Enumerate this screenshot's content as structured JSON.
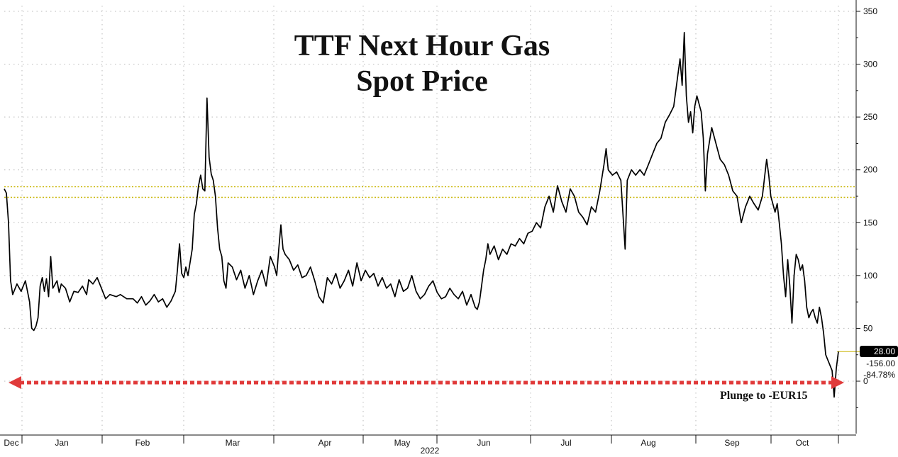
{
  "chart_data": {
    "type": "line",
    "title_lines": [
      "TTF Next Hour Gas",
      "Spot Price"
    ],
    "subtitle": "",
    "xlabel": "2022",
    "ylabel": "",
    "x_tick_labels": [
      "Dec",
      "Jan",
      "Feb",
      "Mar",
      "Apr",
      "May",
      "Jun",
      "Jul",
      "Aug",
      "Sep",
      "Oct"
    ],
    "y_ticks": [
      0,
      50,
      100,
      150,
      200,
      250,
      300,
      350
    ],
    "ylim": [
      -50,
      355
    ],
    "grid": true,
    "series": [
      {
        "points": [
          [
            0,
            182
          ],
          [
            1,
            178
          ],
          [
            2,
            150
          ],
          [
            3,
            95
          ],
          [
            4,
            82
          ],
          [
            6,
            92
          ],
          [
            8,
            85
          ],
          [
            10,
            95
          ],
          [
            12,
            75
          ],
          [
            13,
            50
          ],
          [
            14,
            48
          ],
          [
            15,
            52
          ],
          [
            16,
            60
          ],
          [
            17,
            90
          ],
          [
            18,
            98
          ],
          [
            19,
            85
          ],
          [
            20,
            97
          ],
          [
            21,
            80
          ],
          [
            22,
            118
          ],
          [
            23,
            88
          ],
          [
            25,
            95
          ],
          [
            26,
            84
          ],
          [
            27,
            92
          ],
          [
            29,
            88
          ],
          [
            31,
            75
          ],
          [
            33,
            85
          ],
          [
            35,
            84
          ],
          [
            37,
            90
          ],
          [
            39,
            82
          ],
          [
            40,
            96
          ],
          [
            42,
            92
          ],
          [
            44,
            98
          ],
          [
            46,
            88
          ],
          [
            48,
            78
          ],
          [
            50,
            82
          ],
          [
            53,
            80
          ],
          [
            55,
            82
          ],
          [
            58,
            78
          ],
          [
            61,
            78
          ],
          [
            63,
            74
          ],
          [
            65,
            80
          ],
          [
            67,
            72
          ],
          [
            69,
            76
          ],
          [
            71,
            82
          ],
          [
            73,
            75
          ],
          [
            75,
            78
          ],
          [
            77,
            70
          ],
          [
            79,
            76
          ],
          [
            81,
            85
          ],
          [
            82,
            105
          ],
          [
            83,
            130
          ],
          [
            84,
            102
          ],
          [
            85,
            98
          ],
          [
            86,
            108
          ],
          [
            87,
            100
          ],
          [
            89,
            125
          ],
          [
            90,
            158
          ],
          [
            91,
            168
          ],
          [
            92,
            185
          ],
          [
            93,
            195
          ],
          [
            94,
            182
          ],
          [
            95,
            180
          ],
          [
            96,
            268
          ],
          [
            97,
            212
          ],
          [
            98,
            196
          ],
          [
            99,
            190
          ],
          [
            100,
            175
          ],
          [
            101,
            145
          ],
          [
            102,
            125
          ],
          [
            103,
            118
          ],
          [
            104,
            95
          ],
          [
            105,
            88
          ],
          [
            106,
            112
          ],
          [
            108,
            108
          ],
          [
            110,
            96
          ],
          [
            112,
            105
          ],
          [
            114,
            88
          ],
          [
            116,
            100
          ],
          [
            118,
            82
          ],
          [
            120,
            95
          ],
          [
            122,
            105
          ],
          [
            124,
            90
          ],
          [
            126,
            118
          ],
          [
            128,
            108
          ],
          [
            129,
            100
          ],
          [
            130,
            125
          ],
          [
            131,
            148
          ],
          [
            132,
            125
          ],
          [
            133,
            120
          ],
          [
            135,
            115
          ],
          [
            137,
            105
          ],
          [
            139,
            110
          ],
          [
            141,
            98
          ],
          [
            143,
            100
          ],
          [
            145,
            108
          ],
          [
            147,
            95
          ],
          [
            149,
            80
          ],
          [
            151,
            74
          ],
          [
            153,
            98
          ],
          [
            155,
            92
          ],
          [
            157,
            102
          ],
          [
            159,
            88
          ],
          [
            161,
            95
          ],
          [
            163,
            105
          ],
          [
            165,
            90
          ],
          [
            167,
            112
          ],
          [
            169,
            95
          ],
          [
            171,
            105
          ],
          [
            173,
            98
          ],
          [
            175,
            102
          ],
          [
            177,
            90
          ],
          [
            179,
            98
          ],
          [
            181,
            88
          ],
          [
            183,
            92
          ],
          [
            185,
            80
          ],
          [
            187,
            96
          ],
          [
            189,
            85
          ],
          [
            191,
            88
          ],
          [
            193,
            100
          ],
          [
            195,
            85
          ],
          [
            197,
            78
          ],
          [
            199,
            82
          ],
          [
            201,
            90
          ],
          [
            203,
            95
          ],
          [
            205,
            84
          ],
          [
            207,
            78
          ],
          [
            209,
            80
          ],
          [
            211,
            88
          ],
          [
            213,
            82
          ],
          [
            215,
            78
          ],
          [
            217,
            85
          ],
          [
            219,
            72
          ],
          [
            221,
            82
          ],
          [
            223,
            70
          ],
          [
            224,
            68
          ],
          [
            225,
            75
          ],
          [
            226,
            90
          ],
          [
            227,
            105
          ],
          [
            228,
            115
          ],
          [
            229,
            130
          ],
          [
            230,
            120
          ],
          [
            232,
            128
          ],
          [
            234,
            115
          ],
          [
            236,
            125
          ],
          [
            238,
            120
          ],
          [
            240,
            130
          ],
          [
            242,
            128
          ],
          [
            244,
            135
          ],
          [
            246,
            130
          ],
          [
            248,
            140
          ],
          [
            250,
            142
          ],
          [
            252,
            150
          ],
          [
            254,
            145
          ],
          [
            256,
            165
          ],
          [
            258,
            175
          ],
          [
            260,
            160
          ],
          [
            262,
            185
          ],
          [
            264,
            170
          ],
          [
            266,
            160
          ],
          [
            268,
            182
          ],
          [
            270,
            175
          ],
          [
            272,
            160
          ],
          [
            274,
            155
          ],
          [
            276,
            148
          ],
          [
            278,
            165
          ],
          [
            280,
            160
          ],
          [
            282,
            180
          ],
          [
            284,
            205
          ],
          [
            285,
            220
          ],
          [
            286,
            200
          ],
          [
            288,
            195
          ],
          [
            290,
            198
          ],
          [
            292,
            190
          ],
          [
            294,
            125
          ],
          [
            295,
            190
          ],
          [
            297,
            200
          ],
          [
            299,
            195
          ],
          [
            301,
            200
          ],
          [
            303,
            195
          ],
          [
            305,
            205
          ],
          [
            307,
            215
          ],
          [
            309,
            225
          ],
          [
            311,
            230
          ],
          [
            313,
            245
          ],
          [
            315,
            252
          ],
          [
            317,
            260
          ],
          [
            319,
            290
          ],
          [
            320,
            305
          ],
          [
            321,
            280
          ],
          [
            322,
            330
          ],
          [
            323,
            270
          ],
          [
            324,
            245
          ],
          [
            325,
            255
          ],
          [
            326,
            235
          ],
          [
            327,
            260
          ],
          [
            328,
            270
          ],
          [
            330,
            255
          ],
          [
            331,
            230
          ],
          [
            332,
            180
          ],
          [
            333,
            215
          ],
          [
            335,
            240
          ],
          [
            337,
            225
          ],
          [
            339,
            210
          ],
          [
            341,
            205
          ],
          [
            343,
            195
          ],
          [
            345,
            180
          ],
          [
            347,
            175
          ],
          [
            349,
            150
          ],
          [
            351,
            165
          ],
          [
            353,
            175
          ],
          [
            355,
            168
          ],
          [
            357,
            162
          ],
          [
            359,
            175
          ],
          [
            361,
            210
          ],
          [
            362,
            195
          ],
          [
            363,
            175
          ],
          [
            365,
            160
          ],
          [
            366,
            168
          ],
          [
            367,
            150
          ],
          [
            368,
            130
          ],
          [
            369,
            100
          ],
          [
            370,
            80
          ],
          [
            371,
            115
          ],
          [
            372,
            90
          ],
          [
            373,
            55
          ],
          [
            374,
            100
          ],
          [
            375,
            120
          ],
          [
            376,
            115
          ],
          [
            377,
            105
          ],
          [
            378,
            110
          ],
          [
            379,
            95
          ],
          [
            380,
            70
          ],
          [
            381,
            60
          ],
          [
            382,
            65
          ],
          [
            383,
            68
          ],
          [
            384,
            60
          ],
          [
            385,
            55
          ],
          [
            386,
            70
          ],
          [
            387,
            60
          ],
          [
            388,
            45
          ],
          [
            389,
            25
          ],
          [
            390,
            20
          ],
          [
            391,
            15
          ],
          [
            392,
            10
          ],
          [
            393,
            -15
          ],
          [
            394,
            12
          ],
          [
            395,
            28
          ]
        ]
      }
    ],
    "reference_lines": [
      {
        "value": 184,
        "color": "#c8b400"
      },
      {
        "value": 174,
        "color": "#c8b400"
      }
    ],
    "last_value": 28,
    "value_tags": [
      "28.00",
      "-156.00",
      "-84.78%"
    ],
    "annotation": "Plunge to -EUR15",
    "colors": {
      "line": "#000000",
      "grid": "#b9b9b9",
      "reference": "#c8b400",
      "arrow": "#e03a3a",
      "tag_bg": "#000000"
    }
  }
}
